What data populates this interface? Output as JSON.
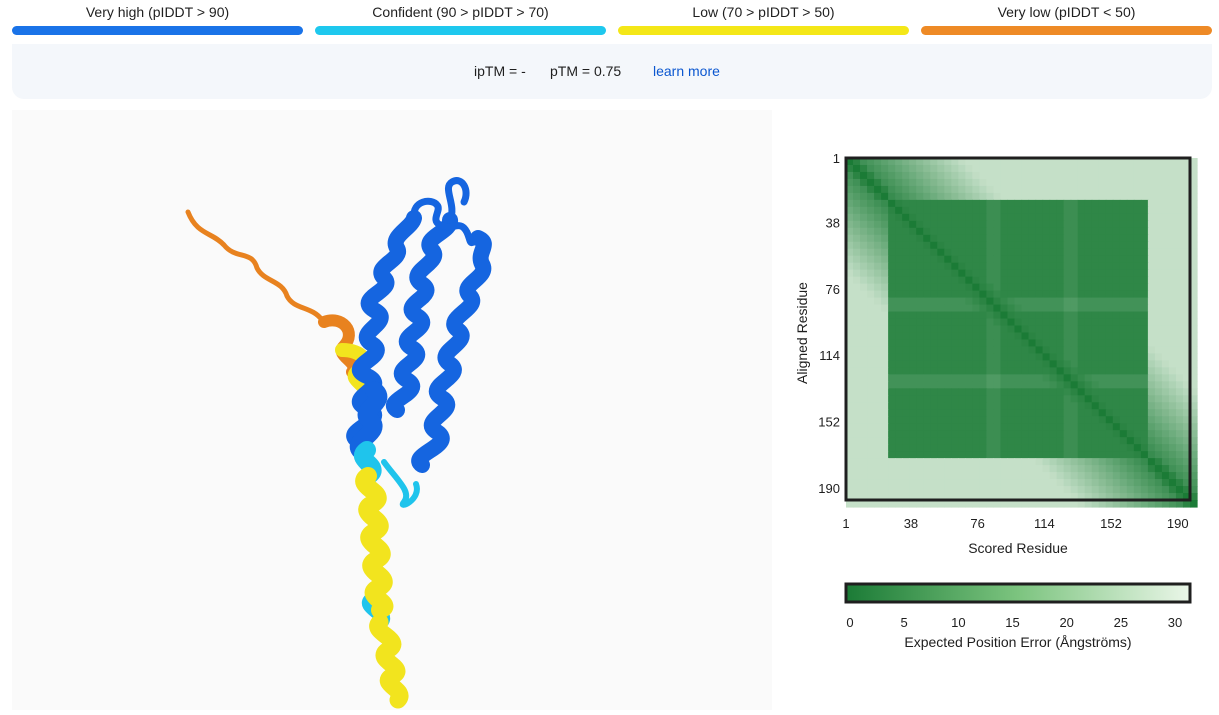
{
  "legend": [
    {
      "label": "Very high (pIDDT > 90)",
      "color": "#1a73e8"
    },
    {
      "label": "Confident (90 > pIDDT > 70)",
      "color": "#1ec8ee"
    },
    {
      "label": "Low (70 > pIDDT > 50)",
      "color": "#f4e718"
    },
    {
      "label": "Very low (pIDDT < 50)",
      "color": "#ee8a26"
    }
  ],
  "metrics": {
    "iptm": "ipTM = -",
    "ptm": "pTM = 0.75",
    "learn_more": "learn more"
  },
  "structure_viewer": {
    "colors": {
      "very_high": "#1565e0",
      "confident": "#1fc4ec",
      "low": "#f2e41e",
      "very_low": "#e8821f"
    }
  },
  "chart_data": {
    "type": "heatmap",
    "title": "",
    "xlabel": "Scored Residue",
    "ylabel": "Aligned Residue",
    "x_ticks": [
      "1",
      "38",
      "76",
      "114",
      "152",
      "190"
    ],
    "y_ticks": [
      "1",
      "38",
      "76",
      "114",
      "152",
      "190"
    ],
    "x_range": [
      1,
      197
    ],
    "y_range": [
      1,
      197
    ],
    "colorbar": {
      "label": "Expected Position Error (Ångströms)",
      "ticks": [
        "0",
        "5",
        "10",
        "15",
        "20",
        "25",
        "30"
      ],
      "range": [
        0,
        31.75
      ],
      "low_color": "#1b7b36",
      "high_color": "#eaf6e8"
    },
    "core_region": {
      "start": 26,
      "end": 172,
      "pae": 3
    },
    "stripes": [
      84,
      128
    ],
    "colors": {
      "low": "#1b7b36",
      "high": "#eaf6e8"
    }
  }
}
